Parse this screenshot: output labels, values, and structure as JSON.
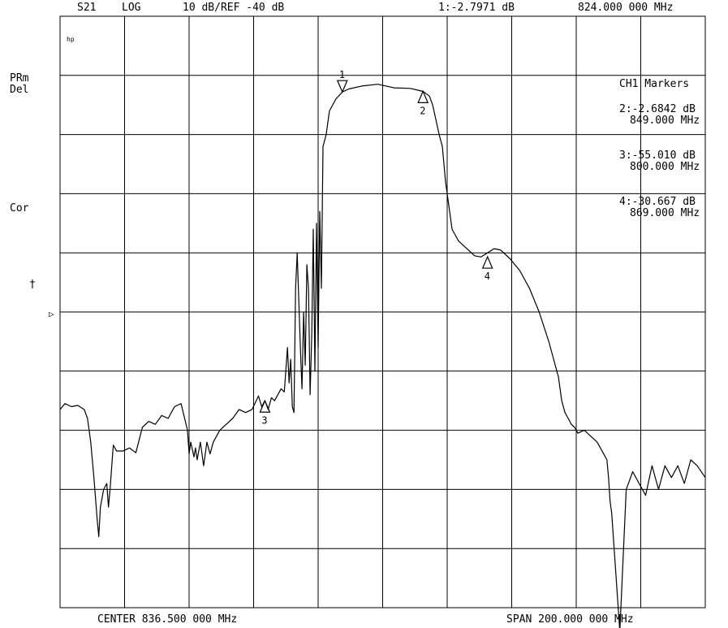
{
  "header": {
    "channel": "S21",
    "format": "LOG",
    "scale_ref": "10 dB/REF -40 dB",
    "marker1_readout": "1:-2.7971 dB",
    "marker1_freq": "824.000 000 MHz"
  },
  "left_labels": {
    "hp": "hp",
    "prm": "PRm",
    "del": "Del",
    "cor": "Cor",
    "dagger": "†",
    "ref_arrow": "▷"
  },
  "footer": {
    "center": "CENTER 836.500 000 MHz",
    "span": "SPAN 200.000 000 MHz"
  },
  "markers_panel": {
    "title": "CH1 Markers",
    "entries": [
      {
        "value": "2:-2.6842 dB",
        "freq": "849.000 MHz"
      },
      {
        "value": "3:-55.010 dB",
        "freq": "800.000 MHz"
      },
      {
        "value": "4:-30.667 dB",
        "freq": "869.000 MHz"
      }
    ]
  },
  "chart_data": {
    "type": "line",
    "ylabel": "",
    "xlabel": "",
    "x_unit": "MHz",
    "y_unit": "dB",
    "xlim": [
      736.5,
      936.5
    ],
    "ylim": [
      -90,
      10
    ],
    "reference_level": -40,
    "grid": true,
    "markers": [
      {
        "id": "1",
        "x": 824.0,
        "y": -2.7971
      },
      {
        "id": "2",
        "x": 849.0,
        "y": -2.6842
      },
      {
        "id": "3",
        "x": 800.0,
        "y": -55.01
      },
      {
        "id": "4",
        "x": 869.0,
        "y": -30.667
      }
    ],
    "series": [
      {
        "x": [
          736.5,
          738,
          740,
          742,
          744,
          745,
          746,
          747,
          748,
          748.5,
          749,
          750,
          751,
          751.5,
          752,
          753,
          754,
          756,
          758,
          760,
          762,
          764,
          766,
          768,
          770,
          772,
          774,
          776,
          776.5,
          777,
          778,
          778.5,
          779,
          780,
          781,
          782,
          783,
          784,
          785,
          786,
          788,
          790,
          792,
          794,
          796,
          798,
          799,
          800,
          801,
          802,
          803,
          804,
          805,
          806,
          807,
          807.5,
          808,
          808.5,
          809,
          809.5,
          810,
          811,
          811.5,
          812,
          812.5,
          813,
          813.5,
          814,
          814.5,
          815,
          815.5,
          816,
          816.5,
          817,
          817.5,
          818,
          819,
          820,
          822,
          824,
          826,
          830,
          835,
          840,
          845,
          849,
          851,
          852,
          854,
          855,
          856,
          857,
          858,
          860,
          862,
          865,
          867,
          869,
          871,
          873,
          876,
          879,
          882,
          885,
          888,
          891,
          892,
          893,
          894,
          895,
          896,
          897,
          899,
          901,
          903,
          905,
          906,
          906.5,
          907,
          907.5,
          908,
          910,
          912,
          914,
          916,
          918,
          920,
          922,
          924,
          926,
          928,
          930,
          932,
          934,
          936.5
        ],
        "values": [
          -56.5,
          -55.5,
          -56,
          -55.8,
          -56.5,
          -58,
          -62,
          -68,
          -75,
          -78,
          -73,
          -70,
          -69,
          -73,
          -70,
          -62.5,
          -63.5,
          -63.5,
          -63,
          -63.8,
          -59.5,
          -58.5,
          -59,
          -57.5,
          -58,
          -56,
          -55.5,
          -60,
          -64,
          -62,
          -64.5,
          -63,
          -65,
          -62,
          -66,
          -62,
          -64,
          -62,
          -61,
          -60,
          -59,
          -58,
          -56.5,
          -57,
          -56.5,
          -54.2,
          -56,
          -55,
          -56.5,
          -54.5,
          -55,
          -54,
          -53,
          -53.5,
          -46,
          -52,
          -48,
          -56,
          -57,
          -36,
          -30,
          -46,
          -53,
          -40,
          -49,
          -32,
          -36,
          -54,
          -44,
          -26,
          -50,
          -25,
          -46,
          -23,
          -36,
          -12,
          -10,
          -6,
          -4,
          -2.8,
          -2.3,
          -1.8,
          -1.5,
          -2.1,
          -2.2,
          -2.7,
          -3.5,
          -5,
          -10,
          -12,
          -18,
          -22,
          -26,
          -28,
          -29,
          -30.5,
          -30.7,
          -30,
          -29.3,
          -29.5,
          -31,
          -33,
          -36,
          -40,
          -45,
          -51,
          -55,
          -57,
          -58,
          -59,
          -59.5,
          -60.5,
          -60,
          -61,
          -62,
          -64,
          -65,
          -68,
          -72,
          -74,
          -78,
          -94,
          -70,
          -67,
          -69,
          -71,
          -66,
          -70,
          -66,
          -68,
          -66,
          -69,
          -65,
          -66,
          -68
        ]
      }
    ]
  }
}
